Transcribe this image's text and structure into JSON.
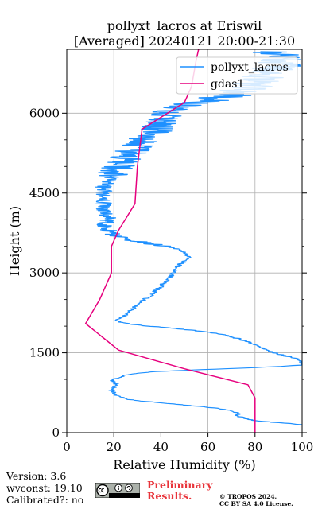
{
  "chart_data": {
    "type": "line",
    "title": "pollyxt_lacros at Eriswil",
    "subtitle": "[Averaged] 20240121 20:00-21:30",
    "xlabel": "Relative Humidity (%)",
    "ylabel": "Height (m)",
    "xlim": [
      0,
      100
    ],
    "ylim": [
      0,
      7200
    ],
    "xticks": [
      0,
      20,
      40,
      60,
      80,
      100
    ],
    "yticks": [
      0,
      1500,
      3000,
      4500,
      6000
    ],
    "grid": true,
    "legend_position": "top-right",
    "series": [
      {
        "name": "pollyxt_lacros",
        "color": "#1e90ff",
        "style": "noisy-profile",
        "points": [
          [
            100,
            150
          ],
          [
            92,
            180
          ],
          [
            80,
            220
          ],
          [
            75,
            280
          ],
          [
            72,
            320
          ],
          [
            73,
            360
          ],
          [
            71,
            400
          ],
          [
            65,
            450
          ],
          [
            55,
            500
          ],
          [
            45,
            540
          ],
          [
            35,
            580
          ],
          [
            27,
            620
          ],
          [
            22,
            680
          ],
          [
            20,
            740
          ],
          [
            19,
            800
          ],
          [
            20,
            860
          ],
          [
            21,
            920
          ],
          [
            19,
            980
          ],
          [
            22,
            1040
          ],
          [
            27,
            1100
          ],
          [
            35,
            1140
          ],
          [
            55,
            1180
          ],
          [
            80,
            1220
          ],
          [
            100,
            1270
          ],
          [
            100,
            1350
          ],
          [
            97,
            1400
          ],
          [
            92,
            1450
          ],
          [
            88,
            1500
          ],
          [
            85,
            1550
          ],
          [
            83,
            1600
          ],
          [
            80,
            1650
          ],
          [
            77,
            1700
          ],
          [
            74,
            1750
          ],
          [
            70,
            1800
          ],
          [
            65,
            1850
          ],
          [
            58,
            1900
          ],
          [
            50,
            1940
          ],
          [
            40,
            1980
          ],
          [
            30,
            2020
          ],
          [
            24,
            2060
          ],
          [
            21,
            2100
          ],
          [
            23,
            2150
          ],
          [
            25,
            2200
          ],
          [
            26,
            2260
          ],
          [
            28,
            2320
          ],
          [
            29,
            2380
          ],
          [
            31,
            2440
          ],
          [
            33,
            2500
          ],
          [
            35,
            2560
          ],
          [
            37,
            2620
          ],
          [
            38,
            2680
          ],
          [
            40,
            2740
          ],
          [
            41,
            2800
          ],
          [
            43,
            2860
          ],
          [
            44,
            2920
          ],
          [
            45,
            2980
          ],
          [
            46,
            3040
          ],
          [
            47,
            3100
          ],
          [
            48,
            3160
          ],
          [
            50,
            3220
          ],
          [
            52,
            3280
          ],
          [
            51,
            3340
          ],
          [
            49,
            3400
          ],
          [
            46,
            3460
          ],
          [
            40,
            3520
          ],
          [
            33,
            3570
          ],
          [
            26,
            3620
          ],
          [
            22,
            3680
          ],
          [
            19,
            3740
          ],
          [
            18,
            3800
          ],
          [
            17,
            3860
          ],
          [
            16,
            3920
          ],
          [
            17,
            3980
          ],
          [
            18,
            4040
          ],
          [
            17,
            4100
          ],
          [
            16,
            4160
          ],
          [
            15,
            4220
          ],
          [
            16,
            4280
          ],
          [
            15,
            4340
          ],
          [
            16,
            4400
          ],
          [
            15,
            4460
          ],
          [
            16,
            4520
          ],
          [
            15,
            4580
          ],
          [
            16,
            4640
          ],
          [
            17,
            4700
          ],
          [
            18,
            4760
          ],
          [
            19,
            4820
          ],
          [
            20,
            4880
          ],
          [
            21,
            4940
          ],
          [
            22,
            5000
          ],
          [
            23,
            5060
          ],
          [
            24,
            5120
          ],
          [
            25,
            5180
          ],
          [
            27,
            5240
          ],
          [
            28,
            5300
          ],
          [
            30,
            5360
          ],
          [
            32,
            5420
          ],
          [
            33,
            5480
          ],
          [
            34,
            5540
          ],
          [
            36,
            5600
          ],
          [
            38,
            5660
          ],
          [
            39,
            5720
          ],
          [
            40,
            5780
          ],
          [
            41,
            5840
          ],
          [
            42,
            5900
          ],
          [
            43,
            5960
          ],
          [
            44,
            6020
          ],
          [
            46,
            6080
          ],
          [
            50,
            6140
          ],
          [
            55,
            6200
          ],
          [
            62,
            6260
          ],
          [
            68,
            6320
          ],
          [
            72,
            6380
          ],
          [
            75,
            6440
          ],
          [
            78,
            6500
          ],
          [
            80,
            6560
          ],
          [
            82,
            6620
          ],
          [
            84,
            6680
          ],
          [
            86,
            6740
          ],
          [
            88,
            6800
          ],
          [
            89,
            6860
          ],
          [
            90,
            6920
          ],
          [
            91,
            6980
          ],
          [
            90,
            7040
          ],
          [
            89,
            7100
          ],
          [
            88,
            7160
          ]
        ]
      },
      {
        "name": "gdas1",
        "color": "#e6007e",
        "style": "line",
        "points": [
          [
            80,
            0
          ],
          [
            80,
            200
          ],
          [
            80,
            450
          ],
          [
            80,
            650
          ],
          [
            77,
            900
          ],
          [
            50,
            1200
          ],
          [
            22,
            1550
          ],
          [
            8,
            2050
          ],
          [
            14,
            2500
          ],
          [
            19,
            3000
          ],
          [
            19,
            3500
          ],
          [
            22,
            3800
          ],
          [
            29,
            4300
          ],
          [
            30,
            5000
          ],
          [
            32,
            5700
          ],
          [
            50,
            6200
          ],
          [
            53,
            6500
          ],
          [
            55,
            7000
          ],
          [
            56,
            7200
          ]
        ]
      }
    ]
  },
  "footer": {
    "version": "Version: 3.6",
    "wvconst": "wvconst:  19.10",
    "calibrated": "Calibrated?: no",
    "preliminary_line1": "Preliminary",
    "preliminary_line2": "Results.",
    "copyright_line1": "© TROPOS 2024.",
    "copyright_line2": "CC BY SA 4.0 License.",
    "license_badge": "cc-by-sa-badge"
  }
}
